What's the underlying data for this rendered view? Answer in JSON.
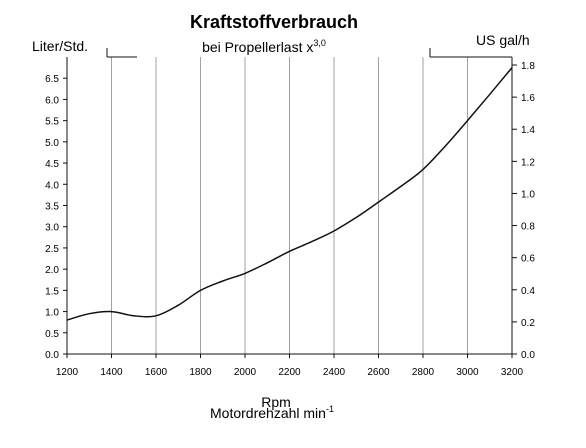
{
  "chart_data": {
    "type": "line",
    "title": "Kraftstoffverbrauch",
    "subtitle_main": "bei Propellerlast x",
    "subtitle_exp": "3,0",
    "ylabel_left": "Liter/Std.",
    "ylabel_right": "US gal/h",
    "xlabel_top": "Rpm",
    "xlabel_main": "Motordrehzahl min",
    "xlabel_exp": "-1",
    "xlim": [
      1200,
      3200
    ],
    "ylim_left": [
      0,
      7.0
    ],
    "ylim_right": [
      0,
      1.85
    ],
    "x_ticks": [
      1200,
      1400,
      1600,
      1800,
      2000,
      2200,
      2400,
      2600,
      2800,
      3000,
      3200
    ],
    "y_left_ticks": [
      "0.0",
      "0.5",
      "1.0",
      "1.5",
      "2.0",
      "2.5",
      "3.0",
      "3.5",
      "4.0",
      "4.5",
      "5.0",
      "5.5",
      "6.0",
      "6.5"
    ],
    "y_right_ticks": [
      "0.0",
      "0.2",
      "0.4",
      "0.6",
      "0.8",
      "1.0",
      "1.2",
      "1.4",
      "1.6",
      "1.8"
    ],
    "grid": "vertical",
    "series": [
      {
        "x": [
          1200,
          1300,
          1400,
          1500,
          1600,
          1700,
          1800,
          1900,
          2000,
          2100,
          2200,
          2300,
          2400,
          2500,
          2600,
          2700,
          2800,
          2900,
          3000,
          3100,
          3200
        ],
        "values": [
          0.8,
          0.95,
          1.0,
          0.9,
          0.9,
          1.15,
          1.5,
          1.72,
          1.9,
          2.15,
          2.42,
          2.65,
          2.9,
          3.22,
          3.58,
          3.95,
          4.35,
          4.9,
          5.5,
          6.12,
          6.75
        ]
      }
    ]
  }
}
